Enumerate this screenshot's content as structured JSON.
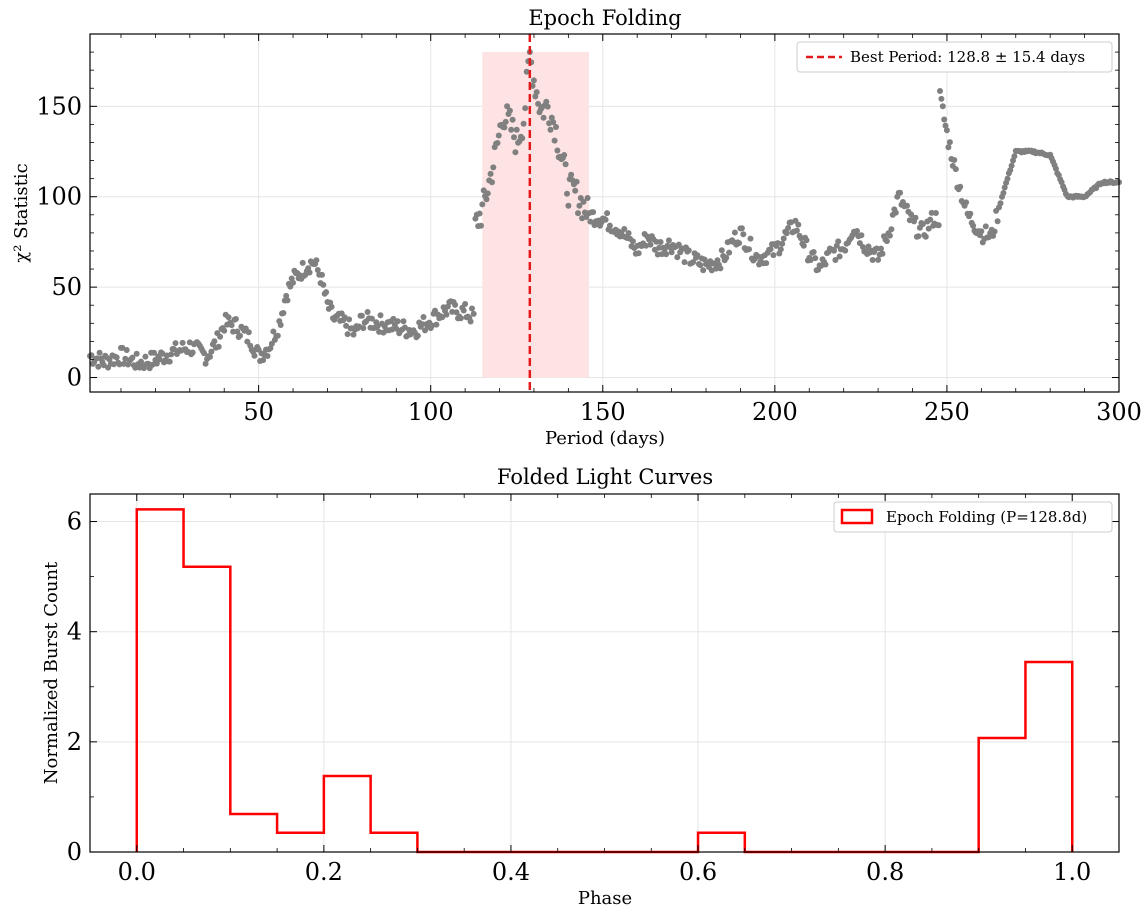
{
  "chart_data": [
    {
      "type": "scatter",
      "title": "Epoch Folding",
      "xlabel": "Period (days)",
      "ylabel": "χ² Statistic",
      "xlim": [
        1,
        300
      ],
      "ylim": [
        -8,
        190
      ],
      "xticks": [
        50,
        100,
        150,
        200,
        250,
        300
      ],
      "xtick_labels": [
        "50",
        "100",
        "150",
        "200",
        "250",
        "300"
      ],
      "yticks": [
        0,
        50,
        100,
        150
      ],
      "ytick_labels": [
        "0",
        "50",
        "100",
        "150"
      ],
      "grid": true,
      "legend_position": "top-right",
      "best_period": 128.8,
      "best_period_uncertainty": 15.4,
      "highlight_range": [
        115,
        146
      ],
      "reference_line_label": "Best Period: 128.8 ± 15.4 days",
      "point_color": "#808080",
      "line_color": "#e31a1c",
      "band_color": "#fde3e3",
      "series_points_x_y": [
        [
          1,
          12
        ],
        [
          5,
          9
        ],
        [
          10,
          12
        ],
        [
          15,
          8
        ],
        [
          20,
          10
        ],
        [
          25,
          14
        ],
        [
          30,
          17
        ],
        [
          35,
          12
        ],
        [
          38,
          20
        ],
        [
          40,
          30
        ],
        [
          43,
          29
        ],
        [
          45,
          26
        ],
        [
          48,
          20
        ],
        [
          50,
          12
        ],
        [
          53,
          17
        ],
        [
          56,
          30
        ],
        [
          58,
          46
        ],
        [
          60,
          54
        ],
        [
          62,
          58
        ],
        [
          64,
          62
        ],
        [
          66,
          64
        ],
        [
          68,
          56
        ],
        [
          70,
          40
        ],
        [
          72,
          32
        ],
        [
          75,
          30
        ],
        [
          78,
          24
        ],
        [
          80,
          32
        ],
        [
          85,
          30
        ],
        [
          90,
          28
        ],
        [
          95,
          26
        ],
        [
          100,
          32
        ],
        [
          105,
          38
        ],
        [
          110,
          36
        ],
        [
          112,
          34
        ],
        [
          113,
          85
        ],
        [
          115,
          92
        ],
        [
          117,
          108
        ],
        [
          119,
          125
        ],
        [
          121,
          146
        ],
        [
          123,
          140
        ],
        [
          125,
          130
        ],
        [
          127,
          143
        ],
        [
          128.8,
          178
        ],
        [
          130,
          165
        ],
        [
          132,
          148
        ],
        [
          134,
          150
        ],
        [
          136,
          140
        ],
        [
          138,
          122
        ],
        [
          140,
          104
        ],
        [
          142,
          102
        ],
        [
          144,
          96
        ],
        [
          146,
          90
        ],
        [
          150,
          88
        ],
        [
          155,
          82
        ],
        [
          160,
          70
        ],
        [
          163,
          78
        ],
        [
          166,
          72
        ],
        [
          170,
          74
        ],
        [
          175,
          66
        ],
        [
          180,
          62
        ],
        [
          185,
          66
        ],
        [
          188,
          76
        ],
        [
          190,
          80
        ],
        [
          195,
          66
        ],
        [
          200,
          70
        ],
        [
          203,
          78
        ],
        [
          206,
          85
        ],
        [
          210,
          68
        ],
        [
          213,
          60
        ],
        [
          216,
          68
        ],
        [
          220,
          72
        ],
        [
          223,
          84
        ],
        [
          226,
          74
        ],
        [
          230,
          66
        ],
        [
          233,
          80
        ],
        [
          236,
          100
        ],
        [
          240,
          85
        ],
        [
          243,
          80
        ],
        [
          246,
          88
        ],
        [
          248,
          155
        ],
        [
          250,
          135
        ],
        [
          253,
          110
        ],
        [
          256,
          90
        ],
        [
          260,
          80
        ],
        [
          263,
          78
        ],
        [
          266,
          100
        ],
        [
          270,
          125
        ],
        [
          275,
          125
        ],
        [
          280,
          123
        ],
        [
          285,
          100
        ],
        [
          290,
          100
        ],
        [
          295,
          108
        ],
        [
          300,
          108
        ]
      ]
    },
    {
      "type": "bar",
      "title": "Folded Light Curves",
      "xlabel": "Phase",
      "ylabel": "Normalized Burst Count",
      "xlim": [
        -0.05,
        1.05
      ],
      "ylim": [
        0,
        6.5
      ],
      "xticks": [
        0.0,
        0.2,
        0.4,
        0.6,
        0.8,
        1.0
      ],
      "xtick_labels": [
        "0.0",
        "0.2",
        "0.4",
        "0.6",
        "0.8",
        "1.0"
      ],
      "yticks": [
        0,
        2,
        4,
        6
      ],
      "ytick_labels": [
        "0",
        "2",
        "4",
        "6"
      ],
      "grid": true,
      "legend_position": "top-right",
      "series": [
        {
          "name": "Epoch Folding (P=128.8d)",
          "color": "#ff0000",
          "bin_edges": [
            0.0,
            0.05,
            0.1,
            0.15,
            0.2,
            0.25,
            0.3,
            0.35,
            0.4,
            0.45,
            0.5,
            0.55,
            0.6,
            0.65,
            0.7,
            0.75,
            0.8,
            0.85,
            0.9,
            0.95,
            1.0
          ],
          "values": [
            6.22,
            5.18,
            0.69,
            0.35,
            1.38,
            0.35,
            0.0,
            0.0,
            0.0,
            0.0,
            0.0,
            0.0,
            0.35,
            0.0,
            0.0,
            0.0,
            0.0,
            0.0,
            2.07,
            3.45
          ]
        }
      ]
    }
  ]
}
